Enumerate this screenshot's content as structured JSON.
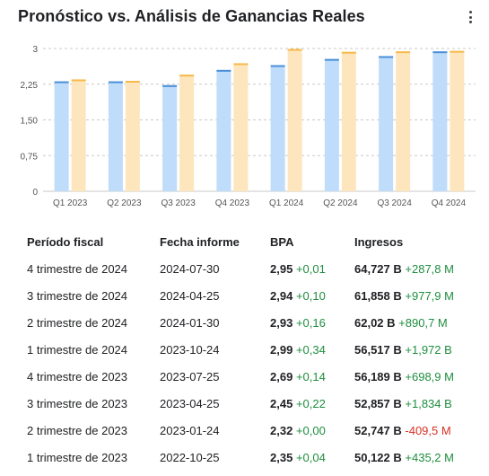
{
  "title": "Pronóstico vs. Análisis de Ganancias Reales",
  "chart_data": {
    "type": "bar",
    "categories": [
      "Q1 2023",
      "Q2 2023",
      "Q3 2023",
      "Q4 2023",
      "Q1 2024",
      "Q2 2024",
      "Q3 2024",
      "Q4 2024"
    ],
    "series": [
      {
        "values": [
          2.31,
          2.31,
          2.23,
          2.55,
          2.65,
          2.78,
          2.84,
          2.94
        ]
      },
      {
        "values": [
          2.35,
          2.32,
          2.45,
          2.69,
          2.99,
          2.93,
          2.94,
          2.95
        ]
      }
    ],
    "y_ticks": [
      "0",
      "0,75",
      "1,50",
      "2,25",
      "3"
    ],
    "ylim": [
      0,
      3
    ],
    "grid": true,
    "colors": {
      "forecast_fill": "#bfdcfa",
      "forecast_cap": "#4a90d9",
      "actual_fill": "#fde6bd",
      "actual_cap": "#f6b94a"
    }
  },
  "table": {
    "headers": [
      "Período fiscal",
      "Fecha informe",
      "BPA",
      "Ingresos"
    ],
    "rows": [
      {
        "period": "4 trimestre de 2024",
        "date": "2024-07-30",
        "eps": "2,95",
        "eps_diff": "+0,01",
        "eps_dir": "pos",
        "rev": "64,727 B",
        "rev_diff": "+287,8 M",
        "rev_dir": "pos"
      },
      {
        "period": "3 trimestre de 2024",
        "date": "2024-04-25",
        "eps": "2,94",
        "eps_diff": "+0,10",
        "eps_dir": "pos",
        "rev": "61,858 B",
        "rev_diff": "+977,9 M",
        "rev_dir": "pos"
      },
      {
        "period": "2 trimestre de 2024",
        "date": "2024-01-30",
        "eps": "2,93",
        "eps_diff": "+0,16",
        "eps_dir": "pos",
        "rev": "62,02 B",
        "rev_diff": "+890,7 M",
        "rev_dir": "pos"
      },
      {
        "period": "1 trimestre de 2024",
        "date": "2023-10-24",
        "eps": "2,99",
        "eps_diff": "+0,34",
        "eps_dir": "pos",
        "rev": "56,517 B",
        "rev_diff": "+1,972 B",
        "rev_dir": "pos"
      },
      {
        "period": "4 trimestre de 2023",
        "date": "2023-07-25",
        "eps": "2,69",
        "eps_diff": "+0,14",
        "eps_dir": "pos",
        "rev": "56,189 B",
        "rev_diff": "+698,9 M",
        "rev_dir": "pos"
      },
      {
        "period": "3 trimestre de 2023",
        "date": "2023-04-25",
        "eps": "2,45",
        "eps_diff": "+0,22",
        "eps_dir": "pos",
        "rev": "52,857 B",
        "rev_diff": "+1,834 B",
        "rev_dir": "pos"
      },
      {
        "period": "2 trimestre de 2023",
        "date": "2023-01-24",
        "eps": "2,32",
        "eps_diff": "+0,00",
        "eps_dir": "pos",
        "rev": "52,747 B",
        "rev_diff": "-409,5 M",
        "rev_dir": "neg"
      },
      {
        "period": "1 trimestre de 2023",
        "date": "2022-10-25",
        "eps": "2,35",
        "eps_diff": "+0,04",
        "eps_dir": "pos",
        "rev": "50,122 B",
        "rev_diff": "+435,2 M",
        "rev_dir": "pos"
      }
    ]
  },
  "icons": {
    "menu": "more-vert-icon"
  }
}
